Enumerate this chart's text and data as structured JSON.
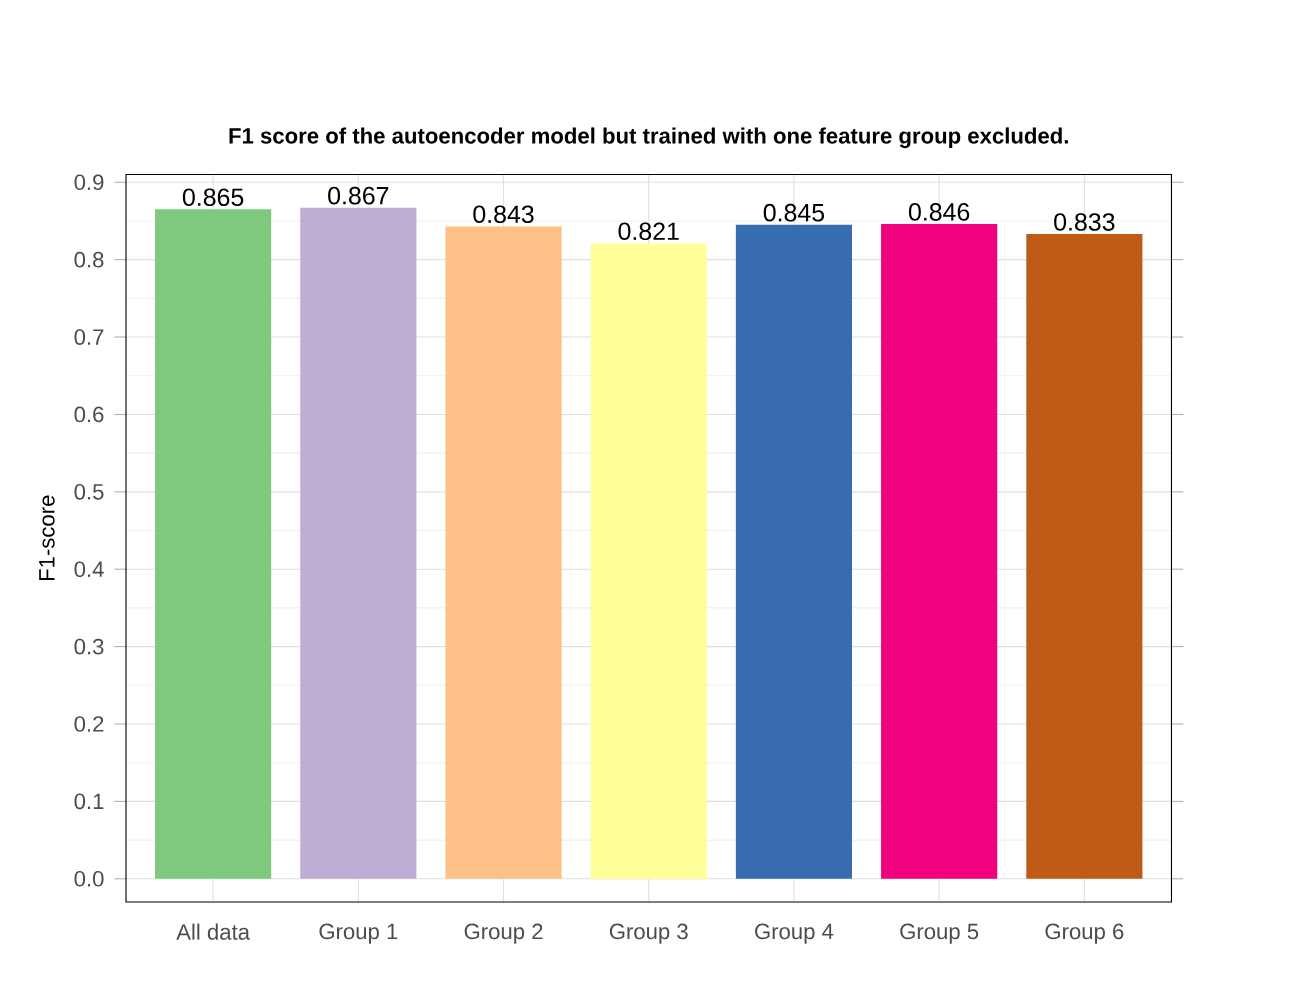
{
  "chart_data": {
    "type": "bar",
    "title": "F1 score of the autoencoder model but trained with one feature group excluded.",
    "ylabel": "F1-score",
    "categories": [
      "All data",
      "Group 1",
      "Group 2",
      "Group 3",
      "Group 4",
      "Group 5",
      "Group 6"
    ],
    "values": [
      0.865,
      0.867,
      0.843,
      0.821,
      0.845,
      0.846,
      0.833
    ],
    "colors": [
      "#7fc97f",
      "#beaed4",
      "#fdc086",
      "#ffff99",
      "#386cb0",
      "#f0027f",
      "#bf5b17"
    ],
    "data_labels": true,
    "grid": true,
    "ylim": [
      -0.03,
      0.91
    ],
    "yticks": [
      "0.0",
      "0.1",
      "0.2",
      "0.3",
      "0.4",
      "0.5",
      "0.6",
      "0.7",
      "0.8",
      "0.9"
    ]
  }
}
